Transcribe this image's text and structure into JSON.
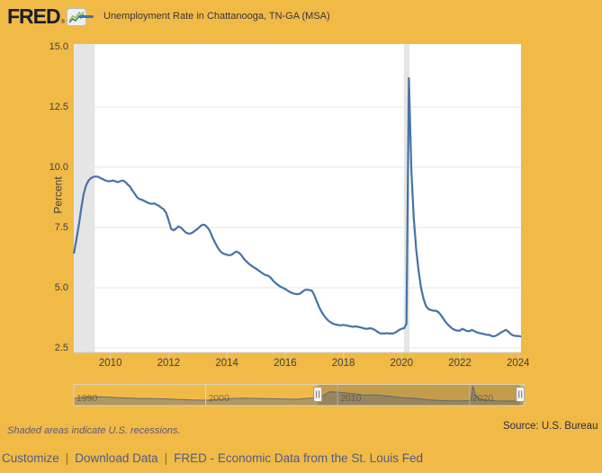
{
  "header": {
    "logo_text": "FRED",
    "registered_mark": "®",
    "legend_label": "Unemployment Rate in Chattanooga, TN-GA (MSA)"
  },
  "chart_data": {
    "type": "line",
    "title": "Unemployment Rate in Chattanooga, TN-GA (MSA)",
    "ylabel": "Percent",
    "ylim": [
      2.3,
      15.1
    ],
    "y_ticks": [
      "2.5",
      "5.0",
      "7.5",
      "10.0",
      "12.5",
      "15.0"
    ],
    "x_ticks": [
      "2010",
      "2012",
      "2014",
      "2016",
      "2018",
      "2020",
      "2022",
      "2024"
    ],
    "grid": true,
    "series": [
      {
        "name": "Unemployment Rate in Chattanooga, TN-GA (MSA)",
        "color": "#4572A7",
        "frequency": "monthly",
        "start": [
          2008,
          10
        ],
        "values": [
          6.45,
          7.0,
          7.6,
          8.3,
          8.9,
          9.25,
          9.45,
          9.55,
          9.6,
          9.62,
          9.6,
          9.55,
          9.5,
          9.45,
          9.42,
          9.42,
          9.45,
          9.42,
          9.38,
          9.42,
          9.45,
          9.4,
          9.3,
          9.2,
          9.05,
          8.9,
          8.75,
          8.68,
          8.65,
          8.6,
          8.55,
          8.5,
          8.48,
          8.5,
          8.45,
          8.4,
          8.32,
          8.25,
          8.1,
          7.8,
          7.45,
          7.38,
          7.45,
          7.55,
          7.5,
          7.4,
          7.3,
          7.25,
          7.25,
          7.3,
          7.38,
          7.45,
          7.55,
          7.62,
          7.6,
          7.5,
          7.35,
          7.1,
          6.9,
          6.7,
          6.55,
          6.45,
          6.4,
          6.37,
          6.35,
          6.37,
          6.45,
          6.5,
          6.45,
          6.35,
          6.2,
          6.1,
          6.0,
          5.92,
          5.85,
          5.8,
          5.72,
          5.65,
          5.58,
          5.52,
          5.5,
          5.42,
          5.3,
          5.2,
          5.12,
          5.05,
          5.0,
          4.95,
          4.88,
          4.82,
          4.78,
          4.75,
          4.73,
          4.75,
          4.82,
          4.9,
          4.92,
          4.9,
          4.88,
          4.7,
          4.45,
          4.2,
          4.0,
          3.85,
          3.72,
          3.62,
          3.55,
          3.5,
          3.47,
          3.45,
          3.44,
          3.46,
          3.44,
          3.42,
          3.4,
          3.38,
          3.4,
          3.38,
          3.36,
          3.33,
          3.3,
          3.3,
          3.32,
          3.3,
          3.25,
          3.18,
          3.12,
          3.1,
          3.1,
          3.12,
          3.1,
          3.1,
          3.12,
          3.18,
          3.25,
          3.3,
          3.32,
          3.5,
          13.7,
          9.9,
          7.9,
          6.6,
          5.7,
          5.0,
          4.55,
          4.25,
          4.12,
          4.08,
          4.05,
          4.05,
          4.0,
          3.9,
          3.75,
          3.6,
          3.48,
          3.38,
          3.3,
          3.25,
          3.22,
          3.22,
          3.3,
          3.25,
          3.2,
          3.2,
          3.25,
          3.2,
          3.15,
          3.12,
          3.1,
          3.08,
          3.05,
          3.05,
          3.0,
          2.98,
          3.02,
          3.08,
          3.15,
          3.2,
          3.25,
          3.18,
          3.08,
          3.02,
          3.0,
          3.0,
          2.98
        ]
      }
    ],
    "recessions": [
      {
        "start": 2008.75,
        "end": 2009.46
      },
      {
        "start": 2020.08,
        "end": 2020.27
      }
    ],
    "navigator": {
      "labels": [
        "1990",
        "2000",
        "2010",
        "2020"
      ],
      "decade_lines": [
        2000,
        2010,
        2020
      ],
      "x": [
        1990,
        1991,
        1992,
        1993,
        1994,
        1995,
        1996,
        1997,
        1998,
        1999,
        2000,
        2001,
        2002,
        2003,
        2004,
        2005,
        2006,
        2007,
        2008,
        2008.8,
        2009.4,
        2010,
        2011,
        2012,
        2013,
        2014,
        2015,
        2016,
        2017,
        2018,
        2019,
        2020.1,
        2020.25,
        2020.45,
        2020.7,
        2021,
        2022,
        2023,
        2024.1
      ],
      "values": [
        5.0,
        5.9,
        6.1,
        5.7,
        5.2,
        4.9,
        4.8,
        4.6,
        4.2,
        3.9,
        3.7,
        4.2,
        4.9,
        5.1,
        4.9,
        4.7,
        4.5,
        4.4,
        5.2,
        6.5,
        9.6,
        9.4,
        8.5,
        7.4,
        7.3,
        6.4,
        5.5,
        4.9,
        3.9,
        3.4,
        3.1,
        3.4,
        13.7,
        7.5,
        4.8,
        4.0,
        3.2,
        3.1,
        3.0
      ],
      "range": [
        1990,
        2024.1
      ],
      "selected_range": [
        2008.5,
        2023.85
      ]
    }
  },
  "footer": {
    "note": "Shaded areas indicate U.S. recessions.",
    "source": "Source: U.S. Bureau",
    "links": [
      "Customize",
      "Download Data",
      "FRED - Economic Data from the St. Louis Fed"
    ],
    "separator": "|"
  },
  "colors": {
    "background": "#F1BA47",
    "plot_background": "#FFFFFF",
    "grid": "#E6E6E6",
    "recession_band": "#E5E5E5",
    "line": "#4572A7",
    "axis_line": "#CCCCCC",
    "nav_area_fill": "rgba(100,110,130,0.45)",
    "nav_area_line": "rgba(80,95,120,0.8)",
    "nav_mask": "rgba(90,90,90,0.30)",
    "nav_border": "rgba(220,215,195,0.9)",
    "nav_decade_line": "rgba(210,220,235,0.9)"
  }
}
